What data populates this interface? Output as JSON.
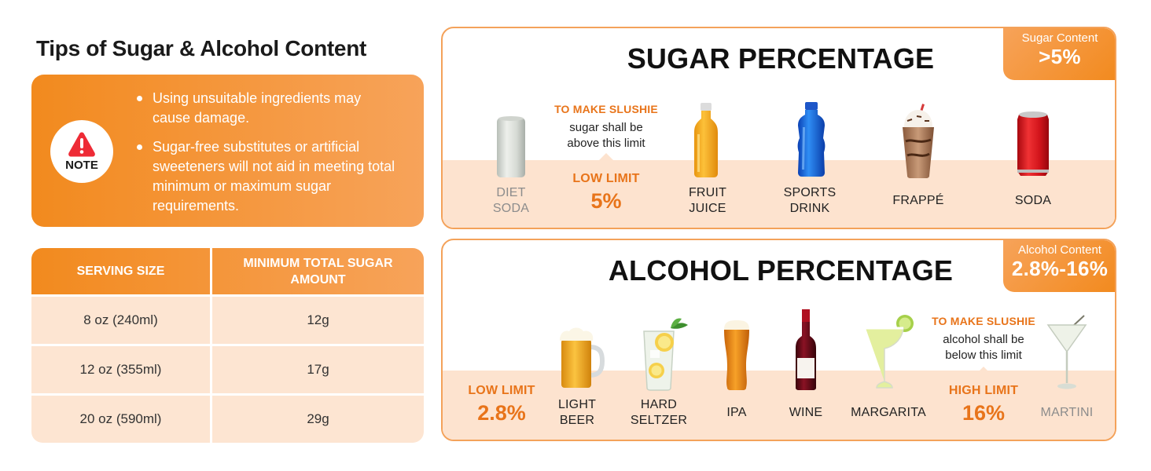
{
  "tips": {
    "title": "Tips of Sugar & Alcohol Content",
    "note_label": "NOTE",
    "note_icon": "warning-triangle-icon",
    "bullets": [
      "Using unsuitable ingredients may cause damage.",
      "Sugar-free substitutes or artificial sweeteners will not aid in meeting total minimum or maximum sugar requirements."
    ]
  },
  "serving_table": {
    "headers": [
      "SERVING SIZE",
      "MINIMUM TOTAL SUGAR AMOUNT"
    ],
    "rows": [
      [
        "8 oz (240ml)",
        "12g"
      ],
      [
        "12 oz (355ml)",
        "17g"
      ],
      [
        "20 oz (590ml)",
        "29g"
      ]
    ]
  },
  "sugar": {
    "title": "SUGAR PERCENTAGE",
    "corner_label": "Sugar Content",
    "corner_value": ">5%",
    "slushie_heading": "TO MAKE SLUSHIE",
    "slushie_text_1": "sugar shall be",
    "slushie_text_2": "above this limit",
    "limit_name": "LOW LIMIT",
    "limit_value": "5%",
    "drinks": [
      {
        "line1": "DIET",
        "line2": "SODA",
        "icon": "white-can-icon"
      },
      {
        "line1": "FRUIT",
        "line2": "JUICE",
        "icon": "juice-bottle-icon"
      },
      {
        "line1": "SPORTS",
        "line2": "DRINK",
        "icon": "sports-drink-bottle-icon"
      },
      {
        "line1": "FRAPPÉ",
        "icon": "frappe-cup-icon"
      },
      {
        "line1": "SODA",
        "icon": "red-soda-can-icon"
      }
    ]
  },
  "alcohol": {
    "title": "ALCOHOL PERCENTAGE",
    "corner_label": "Alcohol Content",
    "corner_value": "2.8%-16%",
    "slushie_heading": "TO MAKE SLUSHIE",
    "slushie_text_1": "alcohol shall be",
    "slushie_text_2": "below this limit",
    "low_limit_name": "LOW LIMIT",
    "low_limit_value": "2.8%",
    "high_limit_name": "HIGH LIMIT",
    "high_limit_value": "16%",
    "drinks": [
      {
        "line1": "LIGHT",
        "line2": "BEER",
        "icon": "beer-mug-icon"
      },
      {
        "line1": "HARD",
        "line2": "SELTZER",
        "icon": "seltzer-glass-icon"
      },
      {
        "line1": "IPA",
        "icon": "ipa-pint-icon"
      },
      {
        "line1": "WINE",
        "icon": "wine-bottle-icon"
      },
      {
        "line1": "MARGARITA",
        "icon": "margarita-glass-icon"
      },
      {
        "line1": "MARTINI",
        "icon": "martini-glass-icon"
      }
    ]
  },
  "colors": {
    "accent": "#f28a1e",
    "accent_light": "#f7a35a",
    "band": "#fde3cf",
    "limit_text": "#e8741a"
  }
}
